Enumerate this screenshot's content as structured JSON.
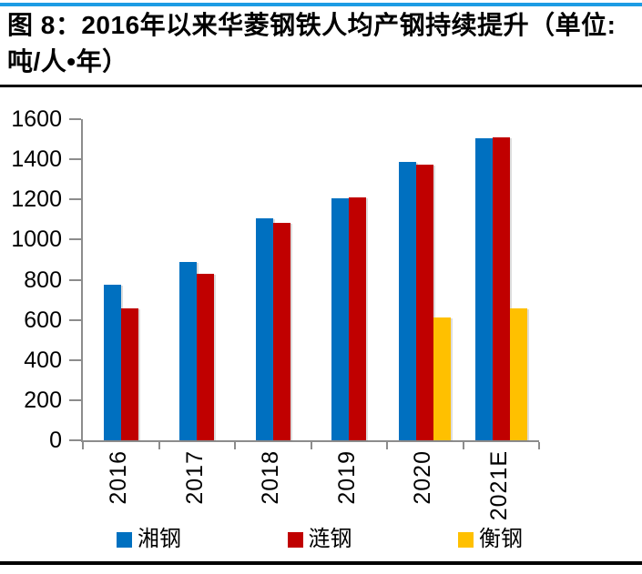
{
  "figure": {
    "title_lines": [
      "图 8：2016年以来华菱钢铁人均产钢持续提升（单位:",
      "吨/人•年）"
    ]
  },
  "chart_data": {
    "type": "bar",
    "title": "2016年以来华菱钢铁人均产钢持续提升",
    "unit": "吨/人•年",
    "categories": [
      "2016",
      "2017",
      "2018",
      "2019",
      "2020",
      "2021E"
    ],
    "series": [
      {
        "name": "湘钢",
        "color": "#0070c0",
        "values": [
          775,
          890,
          1105,
          1205,
          1385,
          1505
        ]
      },
      {
        "name": "涟钢",
        "color": "#c00000",
        "values": [
          655,
          830,
          1085,
          1210,
          1375,
          1510
        ]
      },
      {
        "name": "衡钢",
        "color": "#ffc000",
        "values": [
          null,
          null,
          null,
          null,
          610,
          655
        ]
      }
    ],
    "ylim": [
      0,
      1600
    ],
    "ytick_step": 200,
    "yticks": [
      0,
      200,
      400,
      600,
      800,
      1000,
      1200,
      1400,
      1600
    ],
    "xlabel": "",
    "ylabel": "",
    "grid": false,
    "legend_position": "bottom",
    "axis_color": "#8c8c8c"
  }
}
